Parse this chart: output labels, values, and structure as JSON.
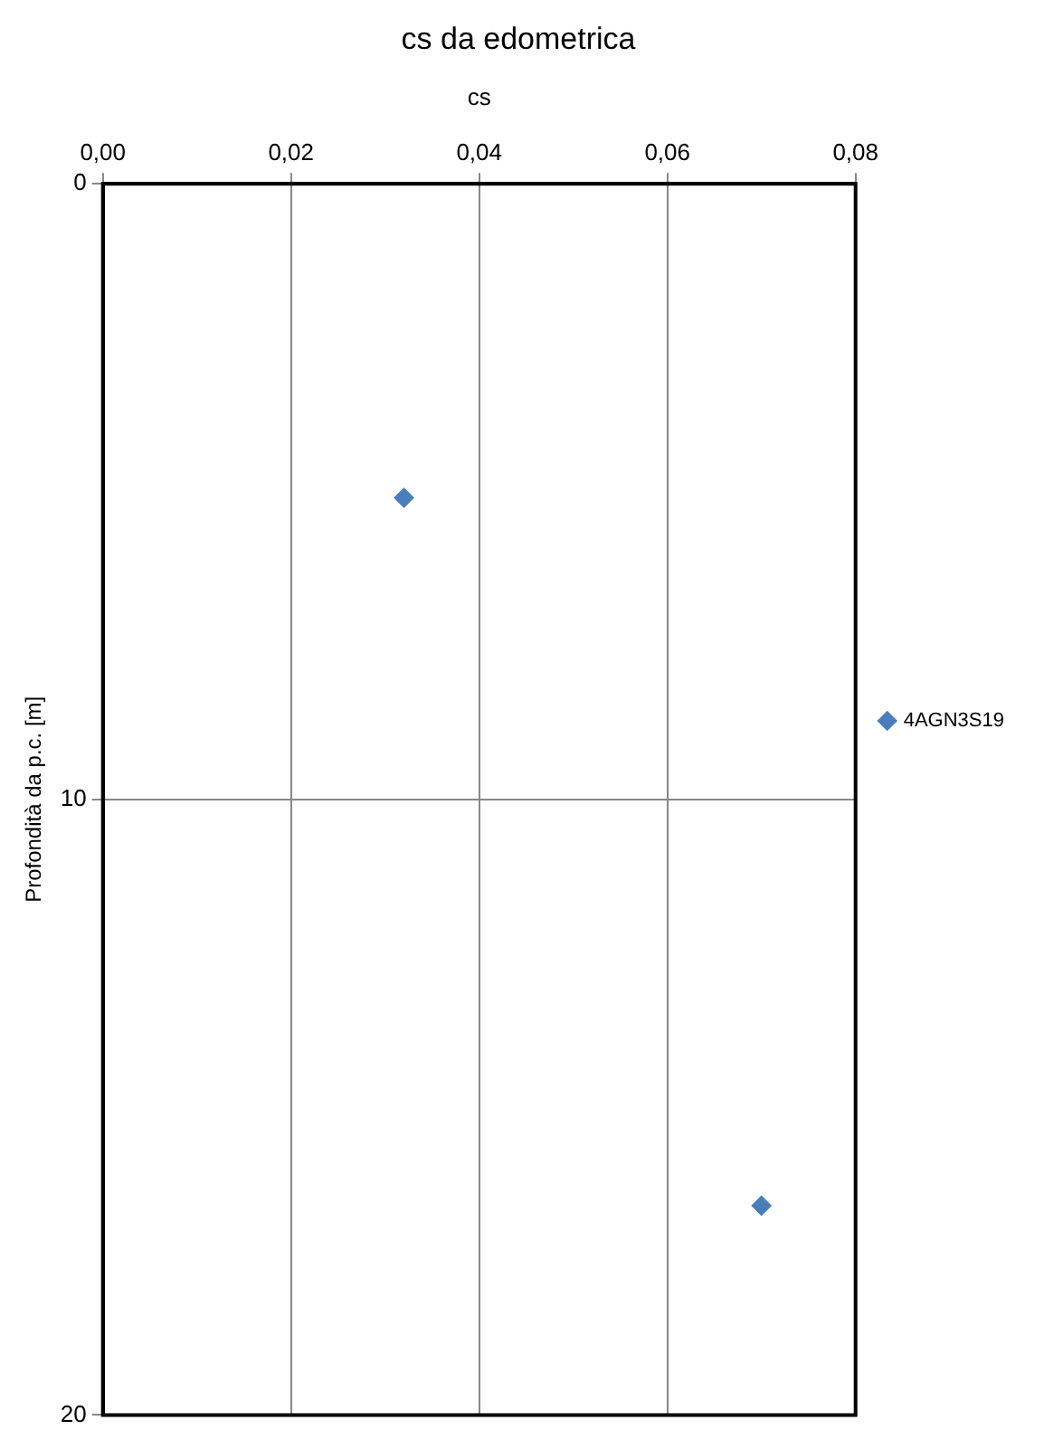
{
  "chart_data": {
    "type": "scatter",
    "title": "cs da edometrica",
    "xlabel": "cs",
    "ylabel": "Profondità da p.c. [m]",
    "x": [
      0.032,
      0.07
    ],
    "series": [
      {
        "name": "4AGN3S19",
        "color": "#4a7ebb",
        "values": [
          5.1,
          16.6
        ]
      }
    ],
    "xlim": [
      0,
      0.08
    ],
    "xticks": [
      {
        "value": 0,
        "label": "0,00"
      },
      {
        "value": 0.02,
        "label": "0,02"
      },
      {
        "value": 0.04,
        "label": "0,04"
      },
      {
        "value": 0.06,
        "label": "0,06"
      },
      {
        "value": 0.08,
        "label": "0,08"
      }
    ],
    "ylim": [
      20,
      0
    ],
    "yticks": [
      0,
      10,
      20
    ],
    "grid": true,
    "legend": "right",
    "marker": "diamond"
  }
}
